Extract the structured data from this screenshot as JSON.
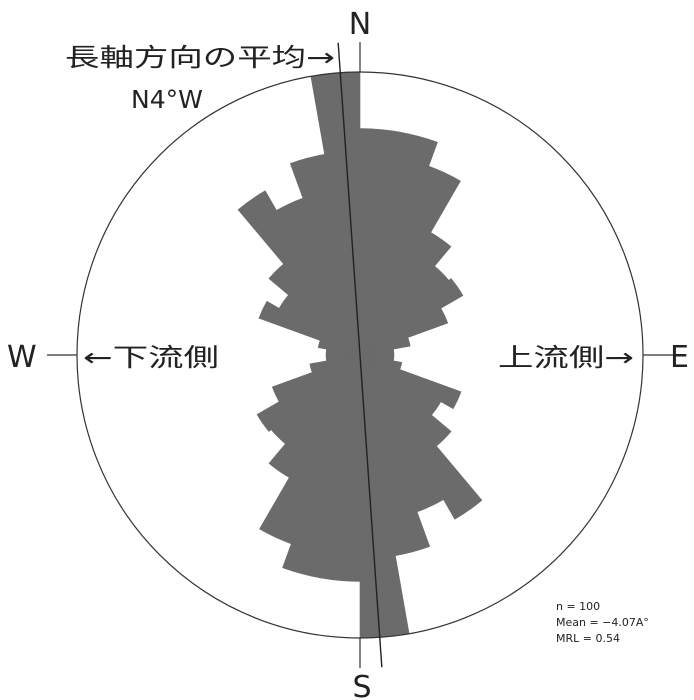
{
  "chart_data": {
    "type": "rose",
    "bin_width_deg": 10,
    "bidirectional": true,
    "bins": [
      {
        "from": 0,
        "to": 10,
        "radius": 0.8
      },
      {
        "from": 10,
        "to": 20,
        "radius": 0.8
      },
      {
        "from": 20,
        "to": 30,
        "radius": 0.71
      },
      {
        "from": 30,
        "to": 40,
        "radius": 0.5
      },
      {
        "from": 40,
        "to": 50,
        "radius": 0.41
      },
      {
        "from": 50,
        "to": 60,
        "radius": 0.42
      },
      {
        "from": 60,
        "to": 70,
        "radius": 0.33
      },
      {
        "from": 70,
        "to": 80,
        "radius": 0.18
      },
      {
        "from": 80,
        "to": 90,
        "radius": 0.12
      },
      {
        "from": 90,
        "to": 100,
        "radius": 0.12
      },
      {
        "from": 100,
        "to": 110,
        "radius": 0.15
      },
      {
        "from": 110,
        "to": 120,
        "radius": 0.38
      },
      {
        "from": 120,
        "to": 130,
        "radius": 0.33
      },
      {
        "from": 130,
        "to": 140,
        "radius": 0.42
      },
      {
        "from": 140,
        "to": 150,
        "radius": 0.67
      },
      {
        "from": 150,
        "to": 160,
        "radius": 0.59
      },
      {
        "from": 160,
        "to": 170,
        "radius": 0.72
      },
      {
        "from": 170,
        "to": 180,
        "radius": 1.0
      },
      {
        "from": 180,
        "to": 190,
        "radius": 0.8
      },
      {
        "from": 190,
        "to": 200,
        "radius": 0.8
      },
      {
        "from": 200,
        "to": 210,
        "radius": 0.71
      },
      {
        "from": 210,
        "to": 220,
        "radius": 0.5
      },
      {
        "from": 220,
        "to": 230,
        "radius": 0.41
      },
      {
        "from": 230,
        "to": 240,
        "radius": 0.42
      },
      {
        "from": 240,
        "to": 250,
        "radius": 0.33
      },
      {
        "from": 250,
        "to": 260,
        "radius": 0.18
      },
      {
        "from": 260,
        "to": 270,
        "radius": 0.12
      },
      {
        "from": 270,
        "to": 280,
        "radius": 0.12
      },
      {
        "from": 280,
        "to": 290,
        "radius": 0.15
      },
      {
        "from": 290,
        "to": 300,
        "radius": 0.38
      },
      {
        "from": 300,
        "to": 310,
        "radius": 0.33
      },
      {
        "from": 310,
        "to": 320,
        "radius": 0.42
      },
      {
        "from": 320,
        "to": 330,
        "radius": 0.67
      },
      {
        "from": 330,
        "to": 340,
        "radius": 0.59
      },
      {
        "from": 340,
        "to": 350,
        "radius": 0.72
      },
      {
        "from": 350,
        "to": 360,
        "radius": 1.0
      }
    ],
    "mean_axis_deg": -4,
    "colors": {
      "petal": "#6b6b6b",
      "outline": "#333333",
      "axis": "#222222"
    }
  },
  "compass": {
    "north": "N",
    "south": "S",
    "east": "E",
    "west": "W"
  },
  "annotations": {
    "mean_axis_label": "長軸方向の平均→",
    "mean_axis_value": "N4°W",
    "downstream": "←下流側",
    "upstream": "上流側→"
  },
  "stats": {
    "n": "n = 100",
    "mean": "Mean = −4.07A°",
    "mrl": "MRL = 0.54"
  }
}
